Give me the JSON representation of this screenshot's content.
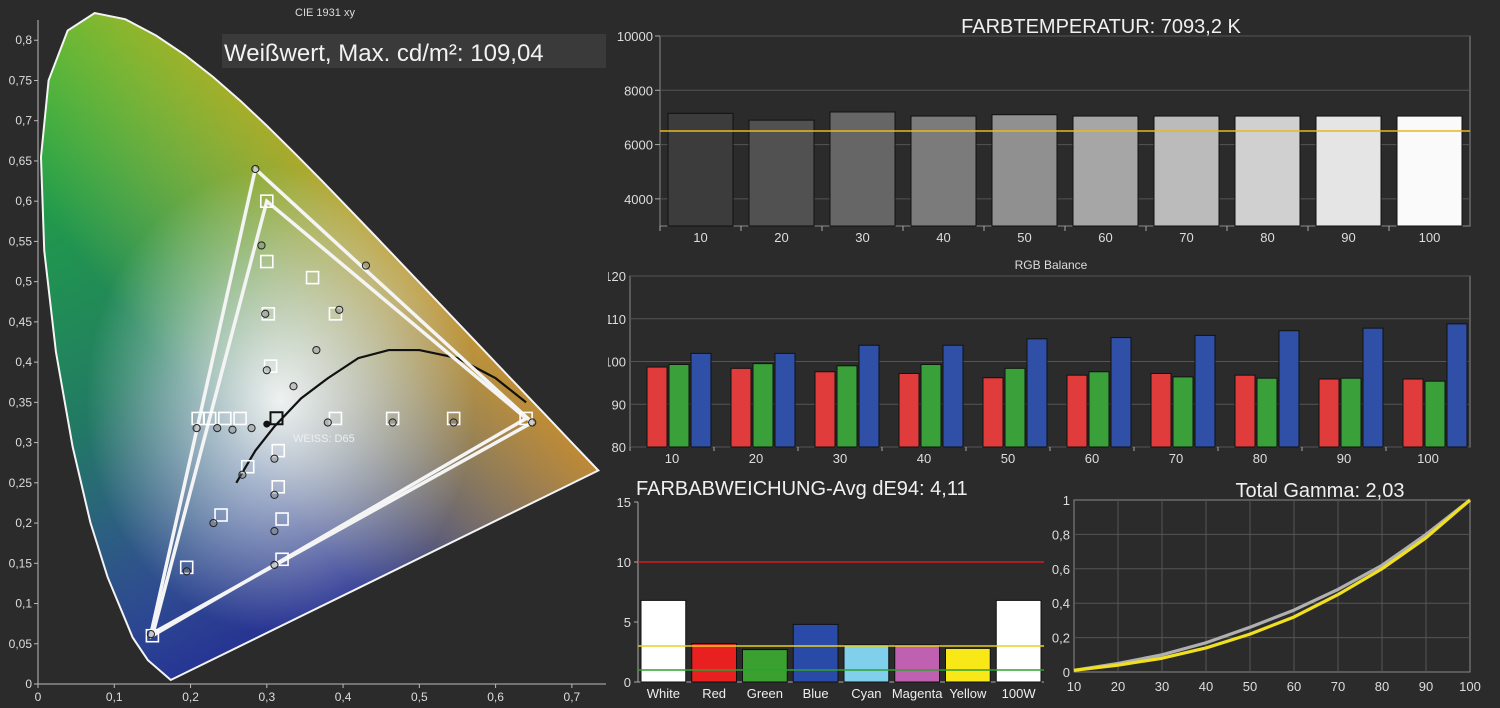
{
  "cie": {
    "title": "CIE 1931 xy",
    "white_label": "Weißwert, Max. cd/m²: 109,04",
    "d65_label": "WEISS: D65",
    "x_ticks": [
      "0",
      "0,1",
      "0,2",
      "0,3",
      "0,4",
      "0,5",
      "0,6",
      "0,7"
    ],
    "y_ticks": [
      "0",
      "0,05",
      "0,1",
      "0,15",
      "0,2",
      "0,25",
      "0,3",
      "0,35",
      "0,4",
      "0,45",
      "0,5",
      "0,55",
      "0,6",
      "0,65",
      "0,7",
      "0,75",
      "0,8"
    ]
  },
  "farbtemp": {
    "title": "FARBTEMPERATUR: 7093,2 K",
    "y_ticks": [
      "4000",
      "6000",
      "8000",
      "10000"
    ]
  },
  "rgb": {
    "title": "RGB Balance",
    "y_ticks": [
      "80",
      "90",
      "100",
      "110",
      "120"
    ]
  },
  "farbab": {
    "title": "FARBABWEICHUNG-Avg dE94: 4,11",
    "y_ticks": [
      "0",
      "5",
      "10",
      "15"
    ]
  },
  "gamma": {
    "title": "Total Gamma: 2,03",
    "y_ticks": [
      "0",
      "0,2",
      "0,4",
      "0,6",
      "0,8",
      "1"
    ],
    "x_ticks": [
      "10",
      "20",
      "30",
      "40",
      "50",
      "60",
      "70",
      "80",
      "90",
      "100"
    ]
  },
  "chart_data": [
    {
      "type": "scatter",
      "title": "CIE 1931 xy",
      "xlim": [
        0,
        0.75
      ],
      "ylim": [
        0,
        0.85
      ],
      "gamut_target": [
        [
          0.64,
          0.33
        ],
        [
          0.3,
          0.6
        ],
        [
          0.15,
          0.06
        ]
      ],
      "gamut_measured": [
        [
          0.648,
          0.325
        ],
        [
          0.285,
          0.64
        ],
        [
          0.148,
          0.062
        ]
      ],
      "white_point": [
        0.3127,
        0.329
      ],
      "targets": [
        [
          0.21,
          0.33
        ],
        [
          0.225,
          0.33
        ],
        [
          0.245,
          0.33
        ],
        [
          0.265,
          0.33
        ],
        [
          0.3,
          0.6
        ],
        [
          0.3,
          0.525
        ],
        [
          0.302,
          0.46
        ],
        [
          0.305,
          0.395
        ],
        [
          0.36,
          0.505
        ],
        [
          0.39,
          0.46
        ],
        [
          0.39,
          0.33
        ],
        [
          0.465,
          0.33
        ],
        [
          0.545,
          0.33
        ],
        [
          0.64,
          0.33
        ],
        [
          0.275,
          0.27
        ],
        [
          0.315,
          0.29
        ],
        [
          0.315,
          0.245
        ],
        [
          0.24,
          0.21
        ],
        [
          0.32,
          0.205
        ],
        [
          0.195,
          0.145
        ],
        [
          0.32,
          0.155
        ],
        [
          0.15,
          0.06
        ]
      ],
      "measured": [
        [
          0.208,
          0.318
        ],
        [
          0.235,
          0.318
        ],
        [
          0.255,
          0.316
        ],
        [
          0.28,
          0.318
        ],
        [
          0.285,
          0.64
        ],
        [
          0.293,
          0.545
        ],
        [
          0.298,
          0.46
        ],
        [
          0.3,
          0.39
        ],
        [
          0.335,
          0.37
        ],
        [
          0.365,
          0.415
        ],
        [
          0.395,
          0.465
        ],
        [
          0.43,
          0.52
        ],
        [
          0.38,
          0.325
        ],
        [
          0.465,
          0.325
        ],
        [
          0.545,
          0.325
        ],
        [
          0.648,
          0.325
        ],
        [
          0.268,
          0.26
        ],
        [
          0.31,
          0.28
        ],
        [
          0.31,
          0.235
        ],
        [
          0.23,
          0.2
        ],
        [
          0.31,
          0.19
        ],
        [
          0.195,
          0.14
        ],
        [
          0.31,
          0.148
        ],
        [
          0.148,
          0.062
        ]
      ]
    },
    {
      "type": "bar",
      "title": "FARBTEMPERATUR: 7093,2 K",
      "categories": [
        "10",
        "20",
        "30",
        "40",
        "50",
        "60",
        "70",
        "80",
        "90",
        "100"
      ],
      "values": [
        7150,
        6900,
        7200,
        7050,
        7100,
        7050,
        7050,
        7050,
        7050,
        7050
      ],
      "reference": 6500,
      "ylim": [
        3000,
        10000
      ]
    },
    {
      "type": "bar",
      "title": "RGB Balance",
      "categories": [
        "10",
        "20",
        "30",
        "40",
        "50",
        "60",
        "70",
        "80",
        "90",
        "100"
      ],
      "series": [
        {
          "name": "Red",
          "color": "#e03c3c",
          "values": [
            98.7,
            98.4,
            97.6,
            97.2,
            96.2,
            96.8,
            97.2,
            96.8,
            95.9,
            95.9
          ]
        },
        {
          "name": "Green",
          "color": "#3aa03a",
          "values": [
            99.3,
            99.5,
            99.0,
            99.3,
            98.4,
            97.6,
            96.4,
            96.1,
            96.1,
            95.4
          ]
        },
        {
          "name": "Blue",
          "color": "#3050a8",
          "values": [
            101.9,
            101.9,
            103.8,
            103.8,
            105.3,
            105.6,
            106.1,
            107.2,
            107.8,
            108.8
          ]
        }
      ],
      "ylim": [
        80,
        120
      ]
    },
    {
      "type": "bar",
      "title": "FARBABWEICHUNG-Avg dE94: 4,11",
      "categories": [
        "White",
        "Red",
        "Green",
        "Blue",
        "Cyan",
        "Magenta",
        "Yellow",
        "100W"
      ],
      "values": [
        6.8,
        3.2,
        2.7,
        4.8,
        3.1,
        3.1,
        2.8,
        6.8
      ],
      "colors": [
        "#ffffff",
        "#e82020",
        "#3aa030",
        "#2a4aa8",
        "#80d0ec",
        "#c060b0",
        "#f8e818",
        "#ffffff"
      ],
      "reference_lines": [
        {
          "value": 10,
          "color": "#d02020"
        },
        {
          "value": 3,
          "color": "#e8d020"
        },
        {
          "value": 1,
          "color": "#30a030"
        }
      ],
      "ylim": [
        0,
        15
      ]
    },
    {
      "type": "line",
      "title": "Total Gamma: 2,03",
      "x": [
        10,
        20,
        30,
        40,
        50,
        60,
        70,
        80,
        90,
        100
      ],
      "series": [
        {
          "color": "#f0e020",
          "values": [
            0.01,
            0.04,
            0.08,
            0.14,
            0.22,
            0.32,
            0.45,
            0.6,
            0.78,
            1.0
          ]
        },
        {
          "color": "#b0b0b0",
          "values": [
            0.01,
            0.05,
            0.1,
            0.17,
            0.26,
            0.36,
            0.48,
            0.62,
            0.8,
            1.0
          ]
        }
      ],
      "ylim": [
        0,
        1
      ]
    }
  ]
}
